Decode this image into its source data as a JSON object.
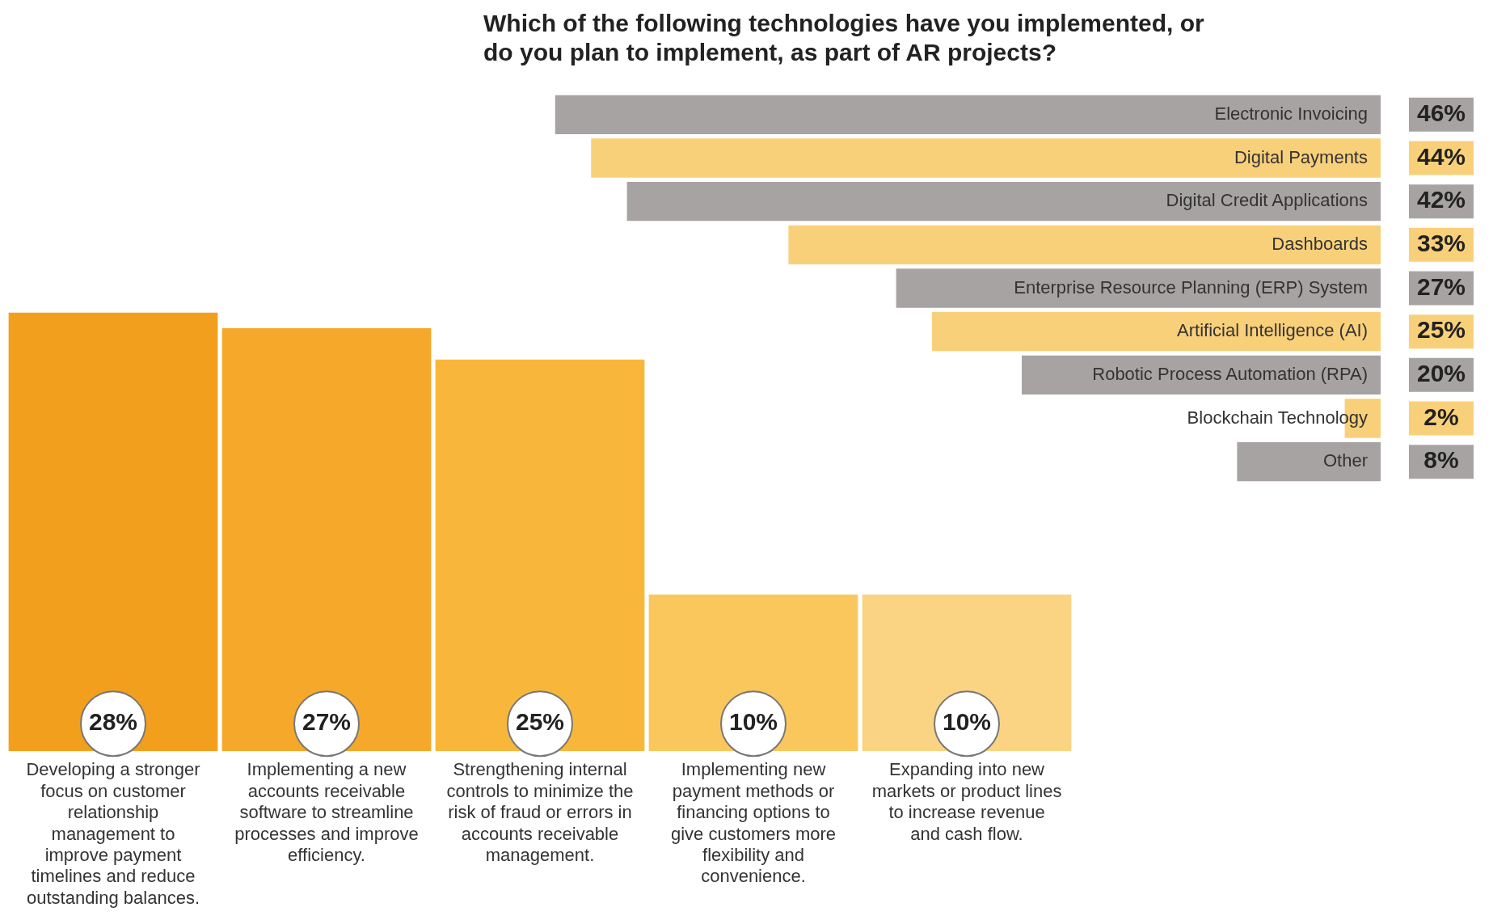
{
  "chart_data": [
    {
      "type": "bar",
      "orientation": "horizontal",
      "title": "Which of the following technologies have you implemented, or do you plan to implement, as part of AR projects?",
      "categories": [
        "Electronic Invoicing",
        "Digital Payments",
        "Digital Credit Applications",
        "Dashboards",
        "Enterprise Resource Planning (ERP) System",
        "Artificial Intelligence (AI)",
        "Robotic Process Automation (RPA)",
        "Blockchain Technology",
        "Other"
      ],
      "values": [
        46,
        44,
        42,
        33,
        27,
        25,
        20,
        2,
        8
      ],
      "value_labels": [
        "46%",
        "44%",
        "42%",
        "33%",
        "27%",
        "25%",
        "20%",
        "2%",
        "8%"
      ],
      "colors": [
        "#a8a3a3",
        "#f9d07a",
        "#a8a3a3",
        "#f9d07a",
        "#a8a3a3",
        "#f9d07a",
        "#a8a3a3",
        "#f9d07a",
        "#a8a3a3"
      ],
      "grid": false,
      "legend": false
    },
    {
      "type": "bar",
      "categories": [
        "Developing a stronger focus on customer relationship management to improve payment timelines and reduce outstanding balances.",
        "Implementing a new accounts receivable software to streamline processes and improve efficiency.",
        "Strengthening internal controls to minimize the risk of fraud or errors in accounts receivable management.",
        "Implementing new payment methods or financing options to give customers more flexibility and convenience.",
        "Expanding into new markets or product lines to increase revenue and cash flow."
      ],
      "values": [
        28,
        27,
        25,
        10,
        10
      ],
      "value_labels": [
        "28%",
        "27%",
        "25%",
        "10%",
        "10%"
      ],
      "colors": [
        "#f39f1e",
        "#f5a829",
        "#f8b73a",
        "#fac75c",
        "#fad483"
      ],
      "grid": false,
      "legend": false
    }
  ]
}
